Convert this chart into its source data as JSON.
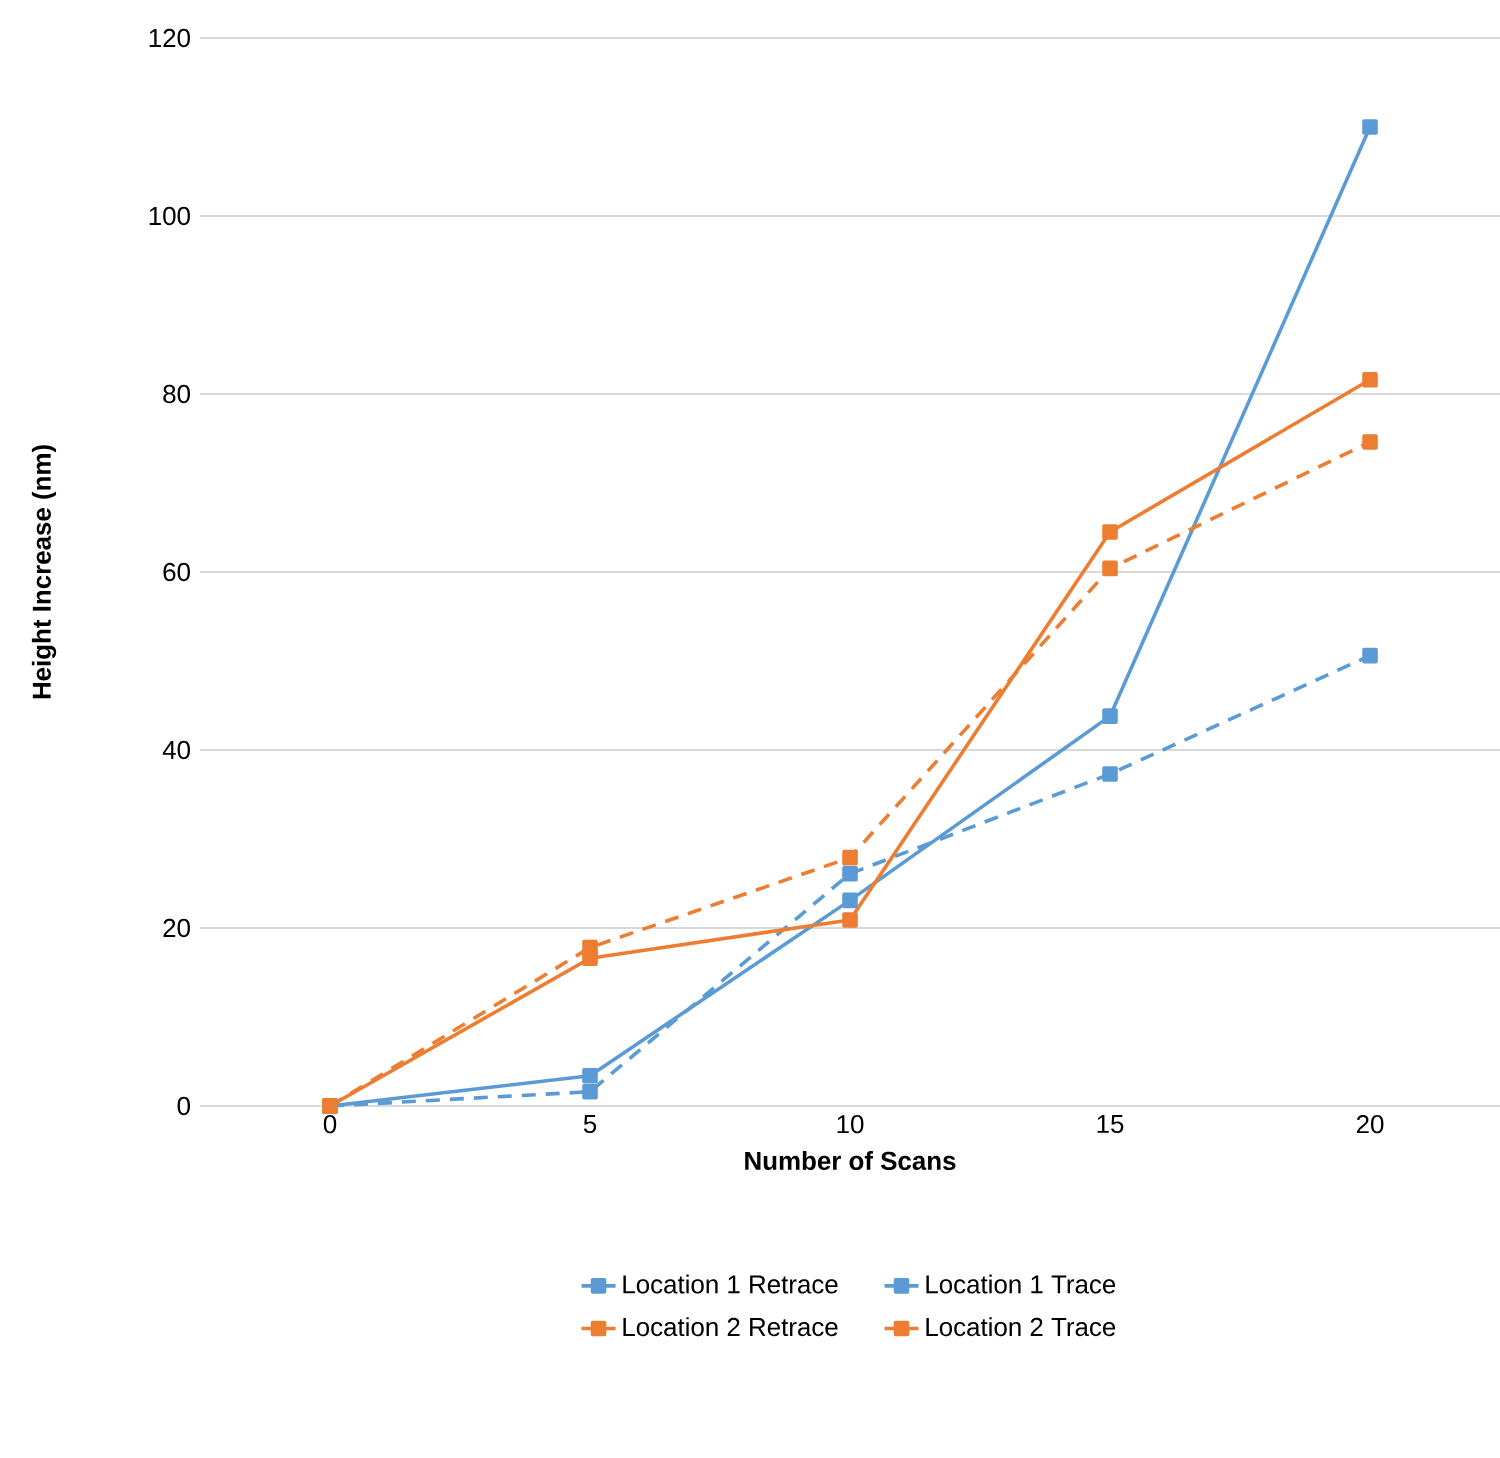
{
  "chart_data": {
    "type": "line",
    "xlabel": "Number of Scans",
    "ylabel": "Height Increase (nm)",
    "categories": [
      "0",
      "5",
      "10",
      "15",
      "20"
    ],
    "series": [
      {
        "name": "Location 1 Retrace",
        "color": "#5b9bd5",
        "line_style": "solid",
        "values": [
          0,
          3.4,
          23.1,
          43.8,
          110
        ]
      },
      {
        "name": "Location 1 Trace",
        "color": "#5b9bd5",
        "line_style": "dashed",
        "values": [
          0,
          1.6,
          26.1,
          37.3,
          50.6
        ]
      },
      {
        "name": "Location 2 Retrace",
        "color": "#ed7d31",
        "line_style": "solid",
        "values": [
          0,
          16.6,
          20.9,
          64.5,
          81.6
        ]
      },
      {
        "name": "Location 2 Trace",
        "color": "#ed7d31",
        "line_style": "dashed",
        "values": [
          0,
          17.8,
          27.9,
          60.4,
          74.6
        ]
      }
    ],
    "ylim": [
      0,
      120
    ],
    "yticks": [
      0,
      20,
      40,
      60,
      80,
      100,
      120
    ],
    "grid": "y",
    "legend": "bottom",
    "marker": "square"
  }
}
